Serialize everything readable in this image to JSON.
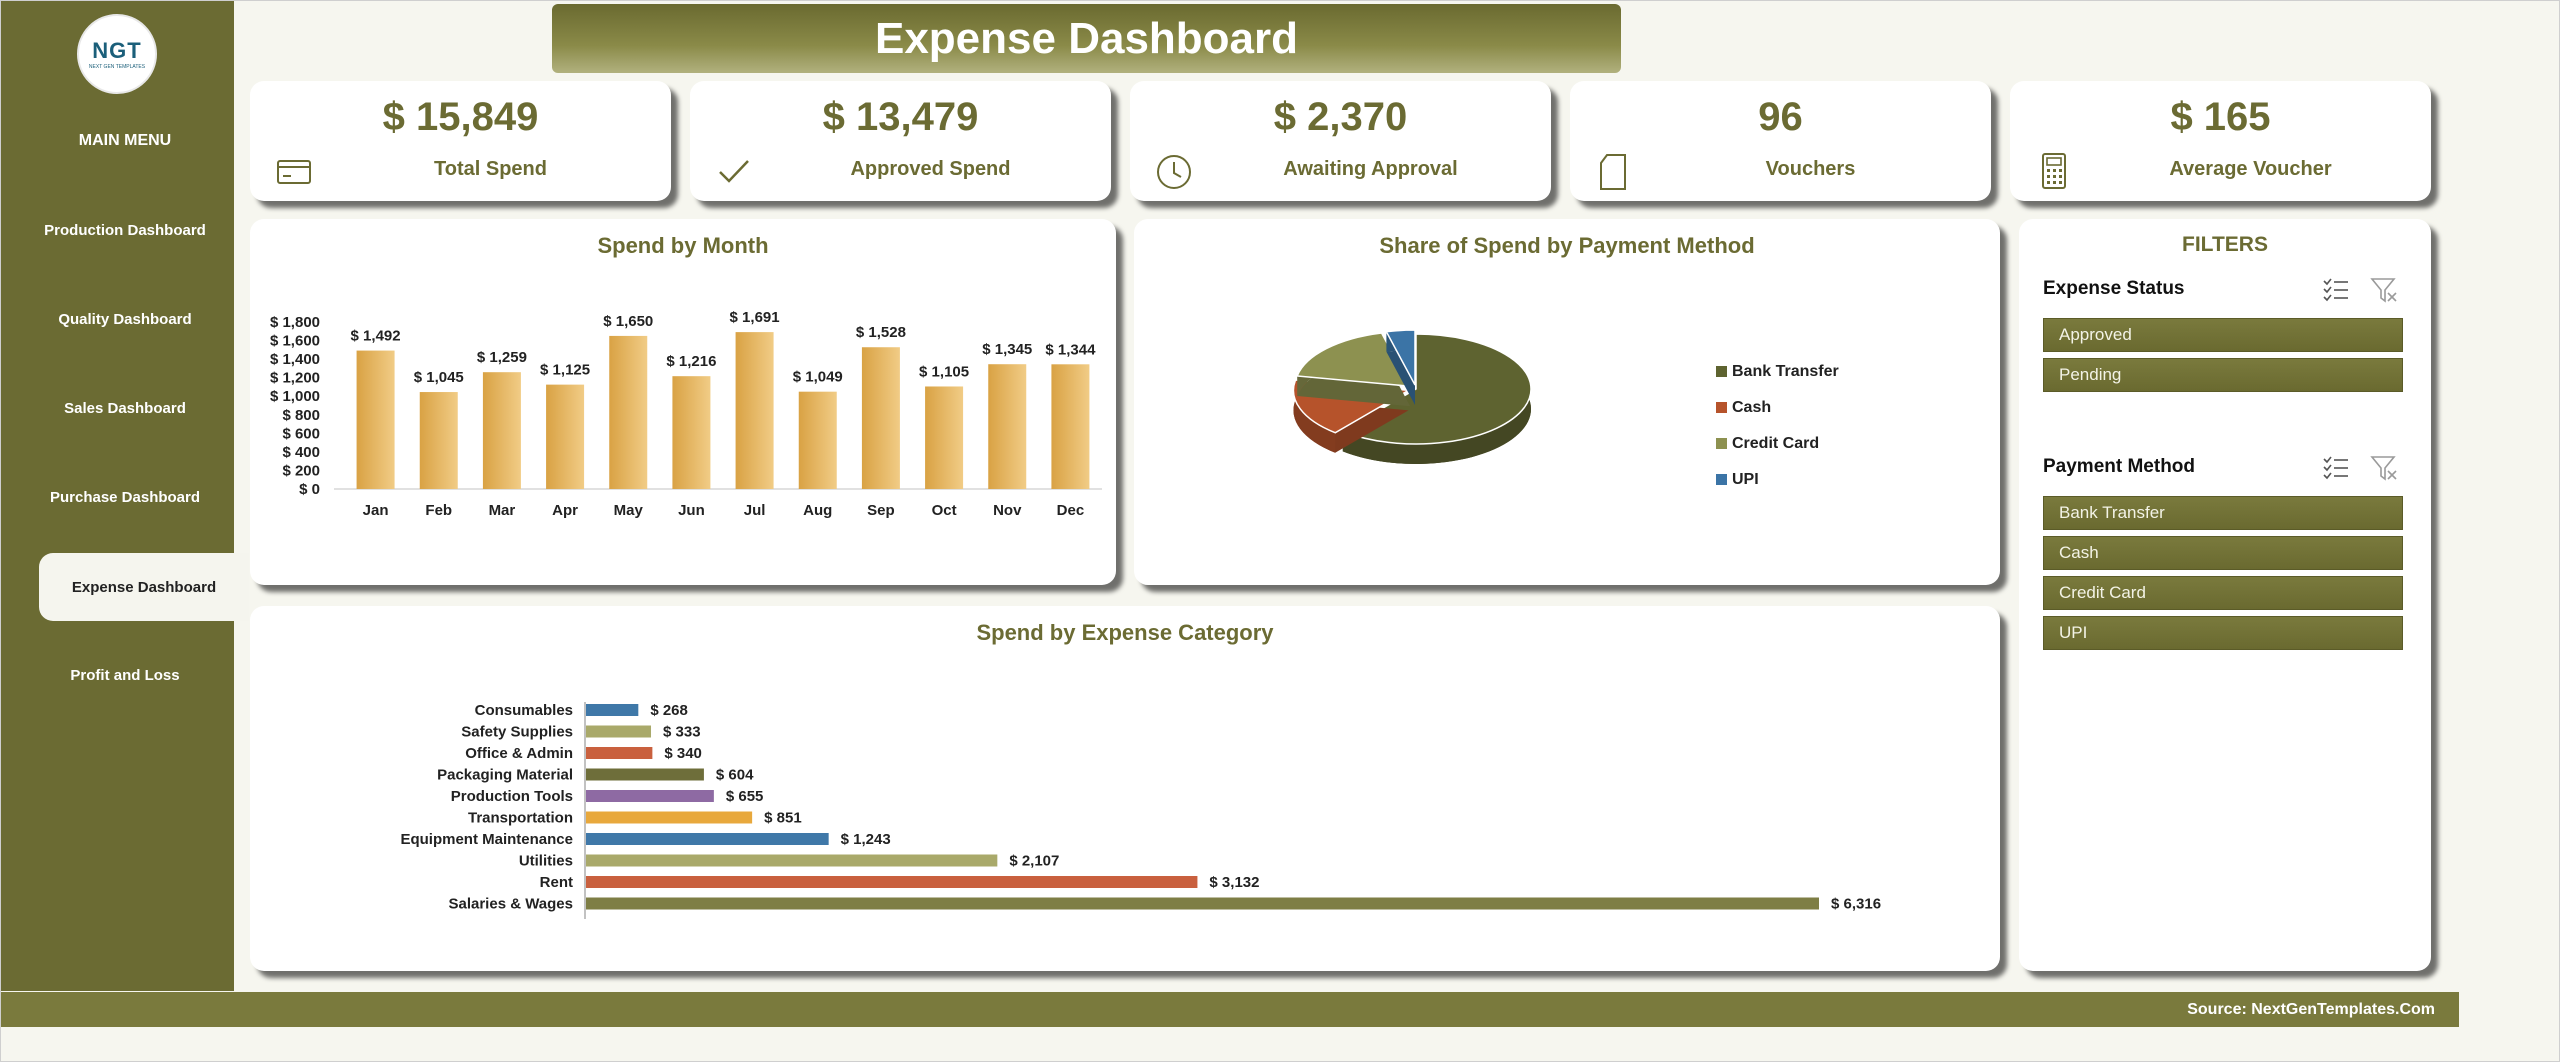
{
  "app": {
    "title": "Expense Dashboard",
    "logo": {
      "mark": "NGT",
      "subtext": "NEXT GEN TEMPLATES"
    },
    "footer_source": "Source: NextGenTemplates.Com"
  },
  "colors": {
    "primary": "#6b6b33",
    "accent_bar": "#e6b45c",
    "pie_dark": "#5e6330",
    "pie_orange": "#b6532b",
    "pie_olive": "#8d9150",
    "pie_blue": "#3b74a6"
  },
  "sidebar": {
    "menu_title": "MAIN MENU",
    "items": [
      {
        "label": "Production Dashboard"
      },
      {
        "label": "Quality Dashboard"
      },
      {
        "label": "Sales Dashboard"
      },
      {
        "label": "Purchase Dashboard"
      },
      {
        "label": "Expense Dashboard",
        "active": true
      },
      {
        "label": "Profit and Loss"
      }
    ]
  },
  "kpis": [
    {
      "value": "$ 15,849",
      "label": "Total Spend",
      "icon": "credit-card-icon"
    },
    {
      "value": "$ 13,479",
      "label": "Approved Spend",
      "icon": "checkmark-icon"
    },
    {
      "value": "$ 2,370",
      "label": "Awaiting Approval",
      "icon": "clock-icon"
    },
    {
      "value": "96",
      "label": "Vouchers",
      "icon": "document-icon"
    },
    {
      "value": "$ 165",
      "label": "Average Voucher",
      "icon": "calculator-icon"
    }
  ],
  "filters": {
    "title": "FILTERS",
    "groups": [
      {
        "label": "Expense Status",
        "options": [
          "Approved",
          "Pending"
        ]
      },
      {
        "label": "Payment Method",
        "options": [
          "Bank Transfer",
          "Cash",
          "Credit Card",
          "UPI"
        ]
      }
    ]
  },
  "chart_data": [
    {
      "type": "bar",
      "title": "Spend by Month",
      "categories": [
        "Jan",
        "Feb",
        "Mar",
        "Apr",
        "May",
        "Jun",
        "Jul",
        "Aug",
        "Sep",
        "Oct",
        "Nov",
        "Dec"
      ],
      "values": [
        1492,
        1045,
        1259,
        1125,
        1650,
        1216,
        1691,
        1049,
        1528,
        1105,
        1345,
        1344
      ],
      "data_labels": [
        "$ 1,492",
        "$ 1,045",
        "$ 1,259",
        "$ 1,125",
        "$ 1,650",
        "$ 1,216",
        "$ 1,691",
        "$ 1,049",
        "$ 1,528",
        "$ 1,105",
        "$ 1,345",
        "$ 1,344"
      ],
      "ylim": [
        0,
        1800
      ],
      "yticks": [
        "$ 0",
        "$ 200",
        "$ 400",
        "$ 600",
        "$ 800",
        "$ 1,000",
        "$ 1,200",
        "$ 1,400",
        "$ 1,600",
        "$ 1,800"
      ],
      "grid": false,
      "legend": "none"
    },
    {
      "type": "pie",
      "title": "Share of Spend by Payment Method",
      "labels": [
        "Bank Transfer",
        "Cash",
        "Credit Card",
        "UPI"
      ],
      "values": [
        61,
        17,
        18,
        4
      ],
      "colors": [
        "#5e6330",
        "#b6532b",
        "#8d9150",
        "#3b74a6"
      ],
      "legend": "right"
    },
    {
      "type": "bar",
      "orientation": "horizontal",
      "title": "Spend by Expense Category",
      "categories": [
        "Consumables",
        "Safety Supplies",
        "Office & Admin",
        "Packaging Material",
        "Production Tools",
        "Transportation",
        "Equipment Maintenance",
        "Utilities",
        "Rent",
        "Salaries & Wages"
      ],
      "values": [
        268,
        333,
        340,
        604,
        655,
        851,
        1243,
        2107,
        3132,
        6316
      ],
      "data_labels": [
        "$ 268",
        "$ 333",
        "$ 340",
        "$ 604",
        "$ 655",
        "$ 851",
        "$ 1,243",
        "$ 2,107",
        "$ 3,132",
        "$ 6,316"
      ],
      "bar_colors": [
        "#3f78a8",
        "#a9a96a",
        "#c9603e",
        "#6e6e3a",
        "#8e6aa3",
        "#e8a83c",
        "#3f78a8",
        "#a9a96a",
        "#c9603e",
        "#7e7e45"
      ],
      "legend": "none"
    }
  ]
}
